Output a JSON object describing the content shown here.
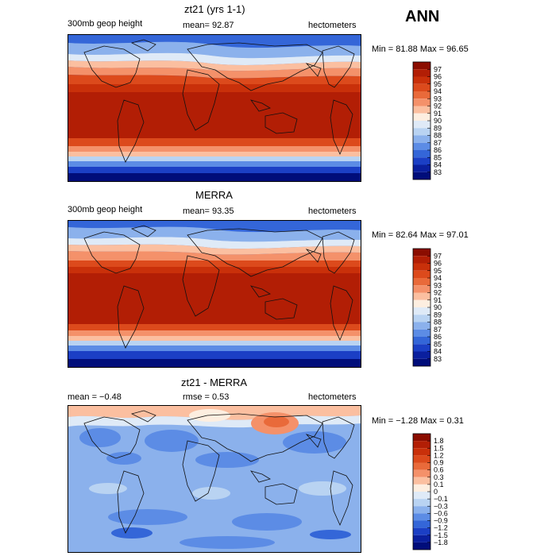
{
  "season": "ANN",
  "panels": [
    {
      "title": "zt21 (yrs 1-1)",
      "variable": "300mb geop height",
      "stat": "mean=  92.87",
      "units": "hectometers",
      "minmax": "Min =  81.88 Max =  96.65",
      "colorbar_labels": [
        "97",
        "96",
        "95",
        "94",
        "93",
        "92",
        "91",
        "90",
        "89",
        "88",
        "87",
        "86",
        "85",
        "84",
        "83"
      ],
      "colorbar_colors": [
        "#8b0d00",
        "#b21e05",
        "#c9300a",
        "#dc4a1c",
        "#e96a3a",
        "#f4916a",
        "#fbbfa0",
        "#fdeee0",
        "#dfeaf7",
        "#b9d3f2",
        "#8bb1ec",
        "#5c8ce5",
        "#3466d8",
        "#1b3fc5",
        "#0a1f9e",
        "#000d7a"
      ]
    },
    {
      "title": "MERRA",
      "variable": "300mb geop height",
      "stat": "mean=  93.35",
      "units": "hectometers",
      "minmax": "Min =  82.64 Max =  97.01",
      "colorbar_labels": [
        "97",
        "96",
        "95",
        "94",
        "93",
        "92",
        "91",
        "90",
        "89",
        "88",
        "87",
        "86",
        "85",
        "84",
        "83"
      ],
      "colorbar_colors": [
        "#8b0d00",
        "#b21e05",
        "#c9300a",
        "#dc4a1c",
        "#e96a3a",
        "#f4916a",
        "#fbbfa0",
        "#fdeee0",
        "#dfeaf7",
        "#b9d3f2",
        "#8bb1ec",
        "#5c8ce5",
        "#3466d8",
        "#1b3fc5",
        "#0a1f9e",
        "#000d7a"
      ]
    },
    {
      "title": "zt21 - MERRA",
      "variable": "mean =  −0.48",
      "stat": "rmse =   0.53",
      "units": "hectometers",
      "minmax": "Min =  −1.28 Max =   0.31",
      "colorbar_labels": [
        "1.8",
        "1.5",
        "1.2",
        "0.9",
        "0.6",
        "0.3",
        "0.1",
        "0",
        "−0.1",
        "−0.3",
        "−0.6",
        "−0.9",
        "−1.2",
        "−1.5",
        "−1.8"
      ],
      "colorbar_colors": [
        "#8b0d00",
        "#b21e05",
        "#c9300a",
        "#dc4a1c",
        "#e96a3a",
        "#f4916a",
        "#fbbfa0",
        "#fdeee0",
        "#dfeaf7",
        "#b9d3f2",
        "#8bb1ec",
        "#5c8ce5",
        "#3466d8",
        "#1b3fc5",
        "#0a1f9e",
        "#000d7a"
      ]
    }
  ]
}
